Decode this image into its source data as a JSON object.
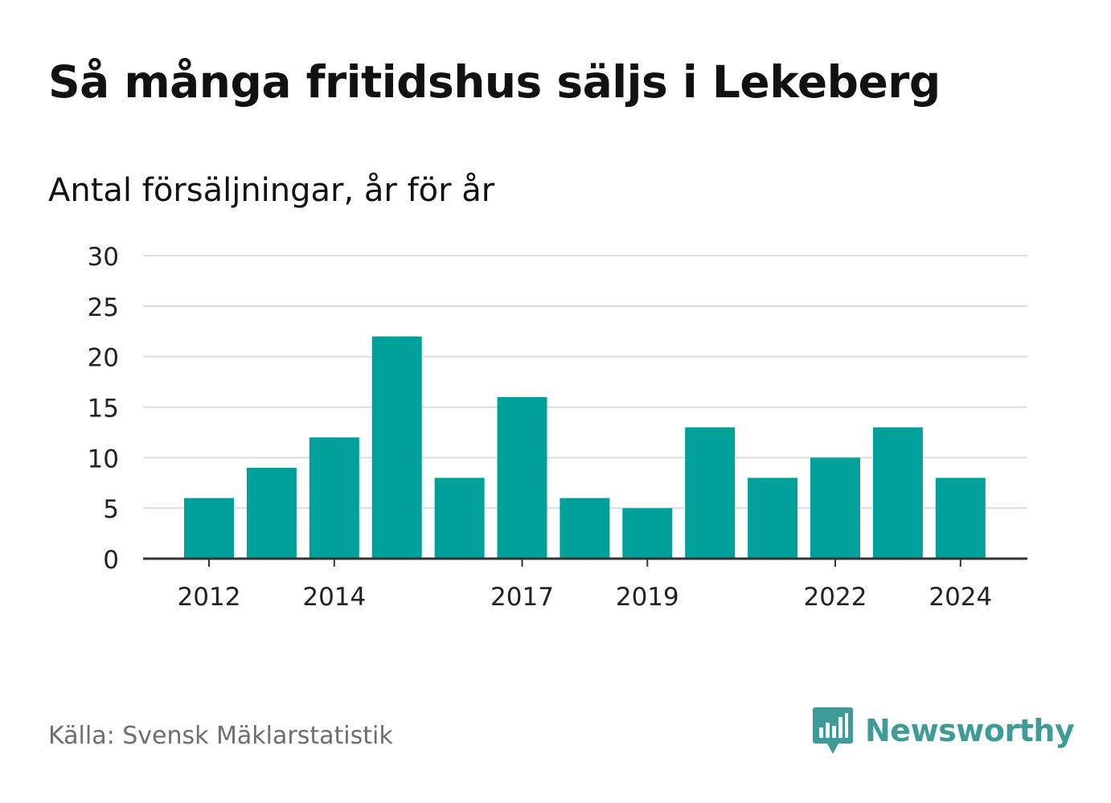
{
  "header": {
    "title": "Så många fritidshus säljs i Lekeberg",
    "subtitle": "Antal försäljningar, år för år"
  },
  "footer": {
    "source": "Källa: Svensk Mäklarstatistik",
    "brand": "Newsworthy",
    "brand_icon": "bar-chart-speech-bubble-icon"
  },
  "colors": {
    "bar": "#00a19a",
    "grid": "#dddddd",
    "axis": "#333333",
    "text": "#111111",
    "muted": "#6e6e6e",
    "brand": "#3e9b97"
  },
  "chart_data": {
    "type": "bar",
    "title": "Så många fritidshus säljs i Lekeberg",
    "subtitle": "Antal försäljningar, år för år",
    "categories": [
      "2012",
      "2013",
      "2014",
      "2015",
      "2016",
      "2017",
      "2018",
      "2019",
      "2020",
      "2021",
      "2022",
      "2023",
      "2024"
    ],
    "values": [
      6,
      9,
      12,
      22,
      8,
      16,
      6,
      5,
      13,
      8,
      10,
      13,
      8
    ],
    "x_tick_labels": [
      "2012",
      "2014",
      "2017",
      "2019",
      "2022",
      "2024"
    ],
    "y_ticks": [
      0,
      5,
      10,
      15,
      20,
      25,
      30
    ],
    "ylim": [
      0,
      30
    ],
    "xlabel": "",
    "ylabel": "",
    "grid": true,
    "legend": "none"
  }
}
